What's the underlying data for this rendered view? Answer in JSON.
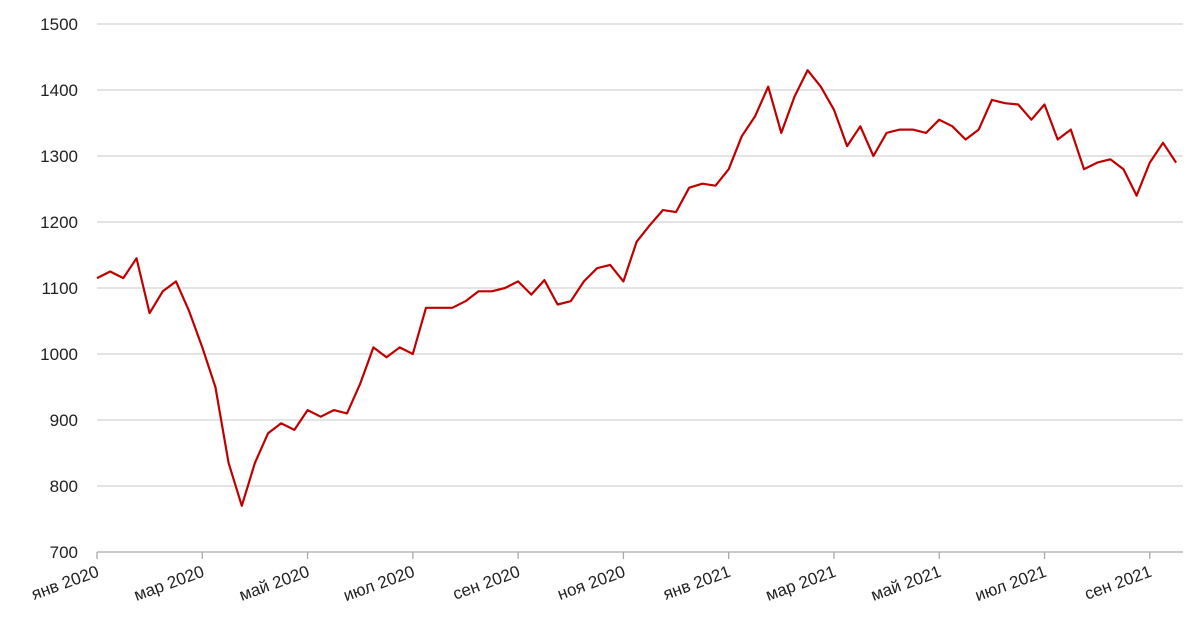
{
  "chart_data": {
    "type": "line",
    "categories": [
      "янв 2020",
      null,
      null,
      null,
      null,
      null,
      null,
      null,
      "мар 2020",
      null,
      null,
      null,
      null,
      null,
      null,
      null,
      "май 2020",
      null,
      null,
      null,
      null,
      null,
      null,
      null,
      "июл 2020",
      null,
      null,
      null,
      null,
      null,
      null,
      null,
      "сен 2020",
      null,
      null,
      null,
      null,
      null,
      null,
      null,
      "ноя 2020",
      null,
      null,
      null,
      null,
      null,
      null,
      null,
      "янв 2021",
      null,
      null,
      null,
      null,
      null,
      null,
      null,
      "мар 2021",
      null,
      null,
      null,
      null,
      null,
      null,
      null,
      "май 2021",
      null,
      null,
      null,
      null,
      null,
      null,
      null,
      "июл 2021",
      null,
      null,
      null,
      null,
      null,
      null,
      null,
      "сен 2021",
      null,
      null
    ],
    "series": [
      {
        "name": null,
        "color": "#c00000",
        "values": [
          1115,
          1125,
          1115,
          1145,
          1062,
          1095,
          1110,
          1065,
          1010,
          950,
          835,
          770,
          835,
          880,
          895,
          885,
          915,
          905,
          915,
          910,
          955,
          1010,
          995,
          1010,
          1000,
          1070,
          1070,
          1070,
          1080,
          1095,
          1095,
          1100,
          1110,
          1090,
          1112,
          1075,
          1080,
          1110,
          1130,
          1135,
          1110,
          1170,
          1195,
          1218,
          1215,
          1252,
          1258,
          1255,
          1280,
          1330,
          1360,
          1405,
          1335,
          1390,
          1430,
          1405,
          1370,
          1315,
          1345,
          1300,
          1335,
          1340,
          1340,
          1335,
          1355,
          1345,
          1325,
          1340,
          1385,
          1380,
          1378,
          1355,
          1378,
          1325,
          1340,
          1280,
          1290,
          1295,
          1280,
          1240,
          1290,
          1320,
          1290
        ]
      }
    ],
    "ylim": [
      700,
      1500
    ],
    "yticks": [
      700,
      800,
      900,
      1000,
      1100,
      1200,
      1300,
      1400,
      1500
    ],
    "grid": true
  }
}
